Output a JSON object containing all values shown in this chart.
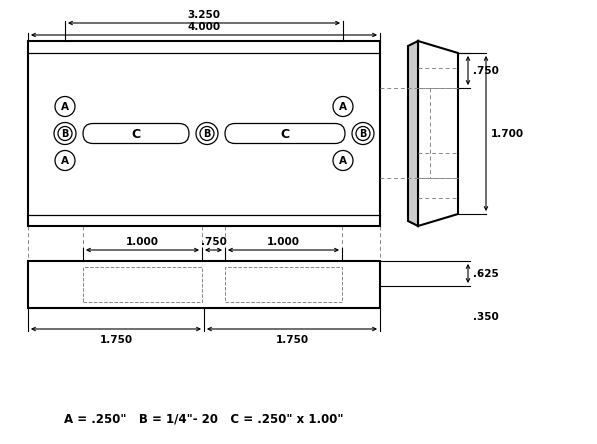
{
  "bg_color": "#ffffff",
  "line_color": "#000000",
  "dashed_color": "#888888",
  "dim_3250": "3.250",
  "dim_4000": "4.000",
  "dim_1000a": "1.000",
  "dim_750h": ".750",
  "dim_1000b": "1.000",
  "dim_1750a": "1.750",
  "dim_1750b": "1.750",
  "dim_750v": ".750",
  "dim_1700": "1.700",
  "dim_625": ".625",
  "dim_350": ".350",
  "legend_text": "A = .250\"   B = 1/4\"- 20   C = .250\" x 1.00\"",
  "font_size_dim": 7.5,
  "font_size_legend": 8.5,
  "font_size_label": 7.5
}
